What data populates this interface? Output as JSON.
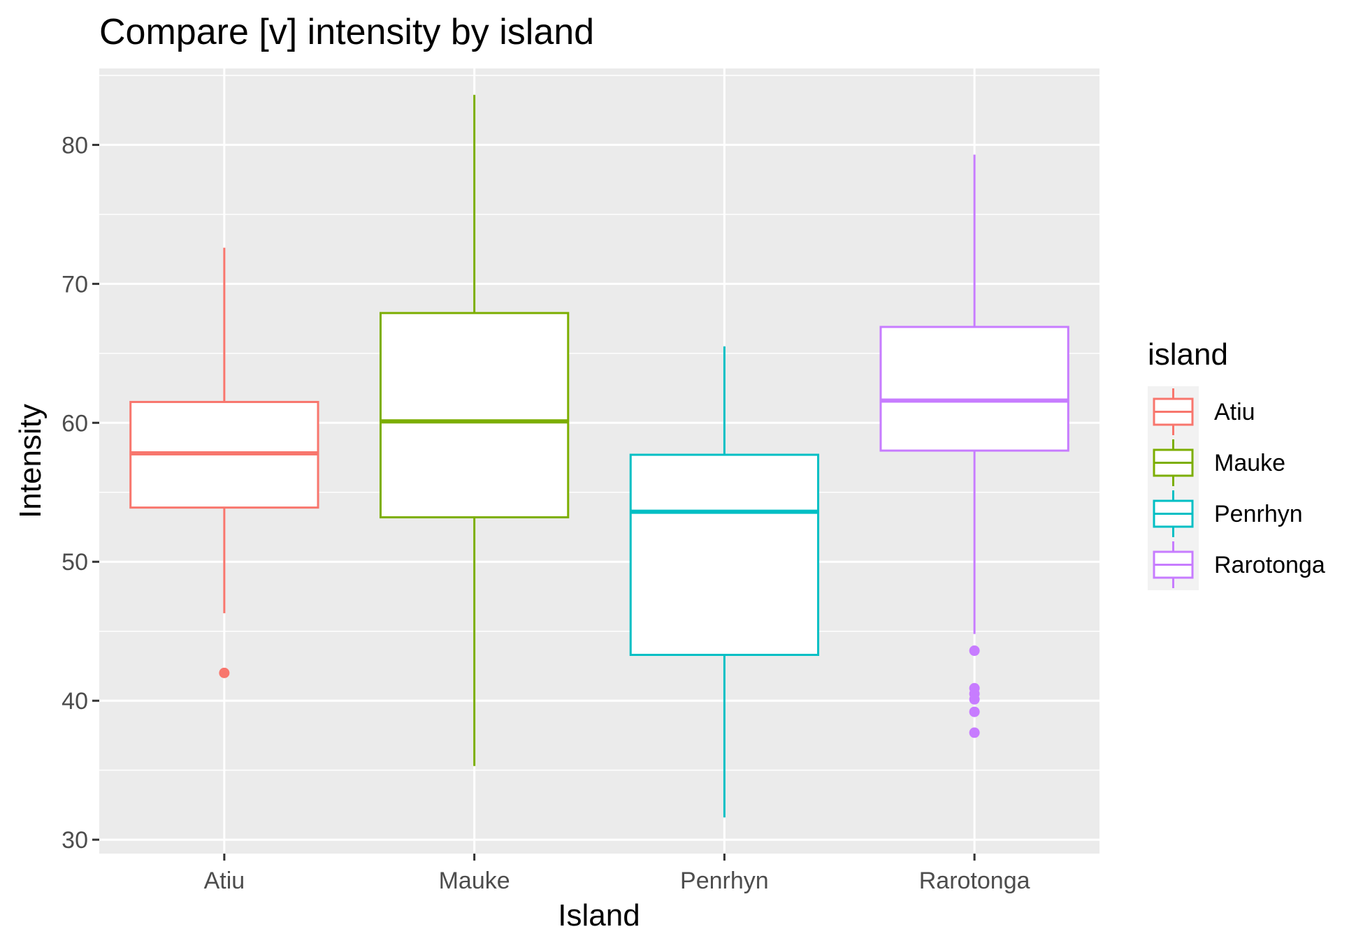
{
  "chart_data": {
    "type": "boxplot",
    "title": "Compare [v] intensity by island",
    "xlabel": "Island",
    "ylabel": "Intensity",
    "ylim": [
      29,
      85.5
    ],
    "yticks": [
      30,
      40,
      50,
      60,
      70,
      80
    ],
    "ytick_labels": [
      "30",
      "40",
      "50",
      "60",
      "70",
      "80"
    ],
    "grid": true,
    "legend": {
      "title": "island",
      "placement": "right"
    },
    "categories": [
      "Atiu",
      "Mauke",
      "Penrhyn",
      "Rarotonga"
    ],
    "series": [
      {
        "name": "Atiu",
        "color": "#F8766D",
        "whisker_low": 46.3,
        "q1": 53.9,
        "median": 57.8,
        "q3": 61.5,
        "whisker_high": 72.6,
        "outliers": [
          42.0
        ]
      },
      {
        "name": "Mauke",
        "color": "#7CAE00",
        "whisker_low": 35.3,
        "q1": 53.2,
        "median": 60.1,
        "q3": 67.9,
        "whisker_high": 83.6,
        "outliers": []
      },
      {
        "name": "Penrhyn",
        "color": "#00BFC4",
        "whisker_low": 31.6,
        "q1": 43.3,
        "median": 53.6,
        "q3": 57.7,
        "whisker_high": 65.5,
        "outliers": []
      },
      {
        "name": "Rarotonga",
        "color": "#C77CFF",
        "whisker_low": 44.8,
        "q1": 58.0,
        "median": 61.6,
        "q3": 66.9,
        "whisker_high": 79.3,
        "outliers": [
          43.6,
          40.9,
          40.5,
          40.1,
          39.2,
          37.7
        ]
      }
    ]
  }
}
